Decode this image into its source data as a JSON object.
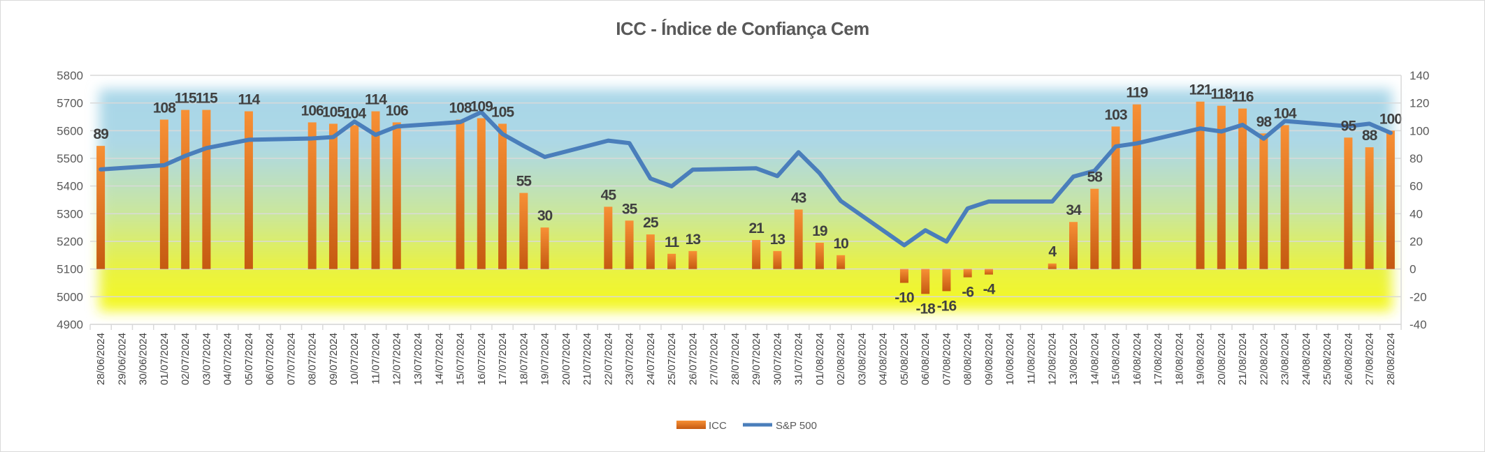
{
  "chart_data": {
    "type": "bar+line",
    "title": "ICC - Índice de Confiança Cem",
    "categories": [
      "28/06/2024",
      "29/06/2024",
      "30/06/2024",
      "01/07/2024",
      "02/07/2024",
      "03/07/2024",
      "04/07/2024",
      "05/07/2024",
      "06/07/2024",
      "07/07/2024",
      "08/07/2024",
      "09/07/2024",
      "10/07/2024",
      "11/07/2024",
      "12/07/2024",
      "13/07/2024",
      "14/07/2024",
      "15/07/2024",
      "16/07/2024",
      "17/07/2024",
      "18/07/2024",
      "19/07/2024",
      "20/07/2024",
      "21/07/2024",
      "22/07/2024",
      "23/07/2024",
      "24/07/2024",
      "25/07/2024",
      "26/07/2024",
      "27/07/2024",
      "28/07/2024",
      "29/07/2024",
      "30/07/2024",
      "31/07/2024",
      "01/08/2024",
      "02/08/2024",
      "03/08/2024",
      "04/08/2024",
      "05/08/2024",
      "06/08/2024",
      "07/08/2024",
      "08/08/2024",
      "09/08/2024",
      "10/08/2024",
      "11/08/2024",
      "12/08/2024",
      "13/08/2024",
      "14/08/2024",
      "15/08/2024",
      "16/08/2024",
      "17/08/2024",
      "18/08/2024",
      "19/08/2024",
      "20/08/2024",
      "21/08/2024",
      "22/08/2024",
      "23/08/2024",
      "24/08/2024",
      "25/08/2024",
      "26/08/2024",
      "27/08/2024",
      "28/08/2024"
    ],
    "series": [
      {
        "name": "ICC",
        "type": "bar",
        "axis": "right",
        "color": "#ed7d31",
        "values": [
          89,
          null,
          null,
          108,
          115,
          115,
          null,
          114,
          null,
          null,
          106,
          105,
          104,
          114,
          106,
          null,
          null,
          108,
          109,
          105,
          55,
          30,
          null,
          null,
          45,
          35,
          25,
          11,
          13,
          null,
          null,
          21,
          13,
          43,
          19,
          10,
          null,
          null,
          -10,
          -18,
          -16,
          -6,
          -4,
          null,
          null,
          4,
          34,
          58,
          103,
          119,
          null,
          null,
          121,
          118,
          116,
          98,
          104,
          null,
          null,
          95,
          88,
          100
        ]
      },
      {
        "name": "S&P 500",
        "type": "line",
        "axis": "left",
        "color": "#4a7ebb",
        "values": [
          5460,
          null,
          null,
          5475,
          5509,
          5537,
          null,
          5567,
          null,
          null,
          5572,
          5577,
          5633,
          5585,
          5615,
          null,
          null,
          5631,
          5667,
          5588,
          5545,
          5505,
          null,
          null,
          5564,
          5555,
          5427,
          5399,
          5459,
          null,
          null,
          5464,
          5436,
          5522,
          5446,
          5346,
          null,
          null,
          5186,
          5240,
          5199,
          5319,
          5344,
          null,
          null,
          5344,
          5434,
          5455,
          5543,
          5554,
          null,
          null,
          5608,
          5597,
          5621,
          5571,
          5635,
          null,
          null,
          5616,
          5625,
          5592
        ]
      }
    ],
    "y_left": {
      "range": [
        4900,
        5800
      ],
      "ticks": [
        "4900",
        "5000",
        "5100",
        "5200",
        "5300",
        "5400",
        "5500",
        "5600",
        "5700",
        "5800"
      ]
    },
    "y_right": {
      "range": [
        -40,
        140
      ],
      "ticks": [
        "-40",
        "-20",
        "0",
        "20",
        "40",
        "60",
        "80",
        "100",
        "120",
        "140"
      ]
    },
    "grid": true,
    "legend": {
      "placement": "bottom",
      "entries": [
        "ICC",
        "S&P 500"
      ]
    },
    "background": {
      "top_color": "#add8e6",
      "bottom_color": "#f5f522"
    }
  }
}
